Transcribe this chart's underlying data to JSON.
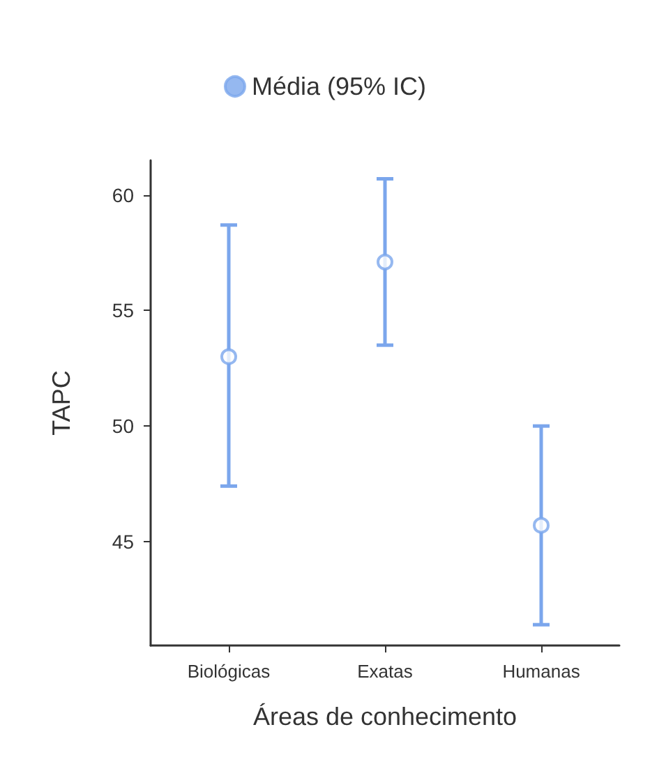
{
  "chart_data": {
    "type": "scatter",
    "xlabel": "Áreas de conhecimento",
    "ylabel": "TAPC",
    "categories": [
      "Biológicas",
      "Exatas",
      "Humanas"
    ],
    "series": [
      {
        "name": "Média (95% IC)",
        "color": "#7ba6ec",
        "values": [
          53.0,
          57.1,
          45.7
        ],
        "errors": [
          [
            47.4,
            58.7
          ],
          [
            53.5,
            60.7
          ],
          [
            41.4,
            50.0
          ]
        ]
      }
    ],
    "ylim": [
      40.5,
      61.5
    ],
    "yticks": [
      45,
      50,
      55,
      60
    ],
    "grid": false,
    "legend": "top",
    "marker": "circle"
  }
}
